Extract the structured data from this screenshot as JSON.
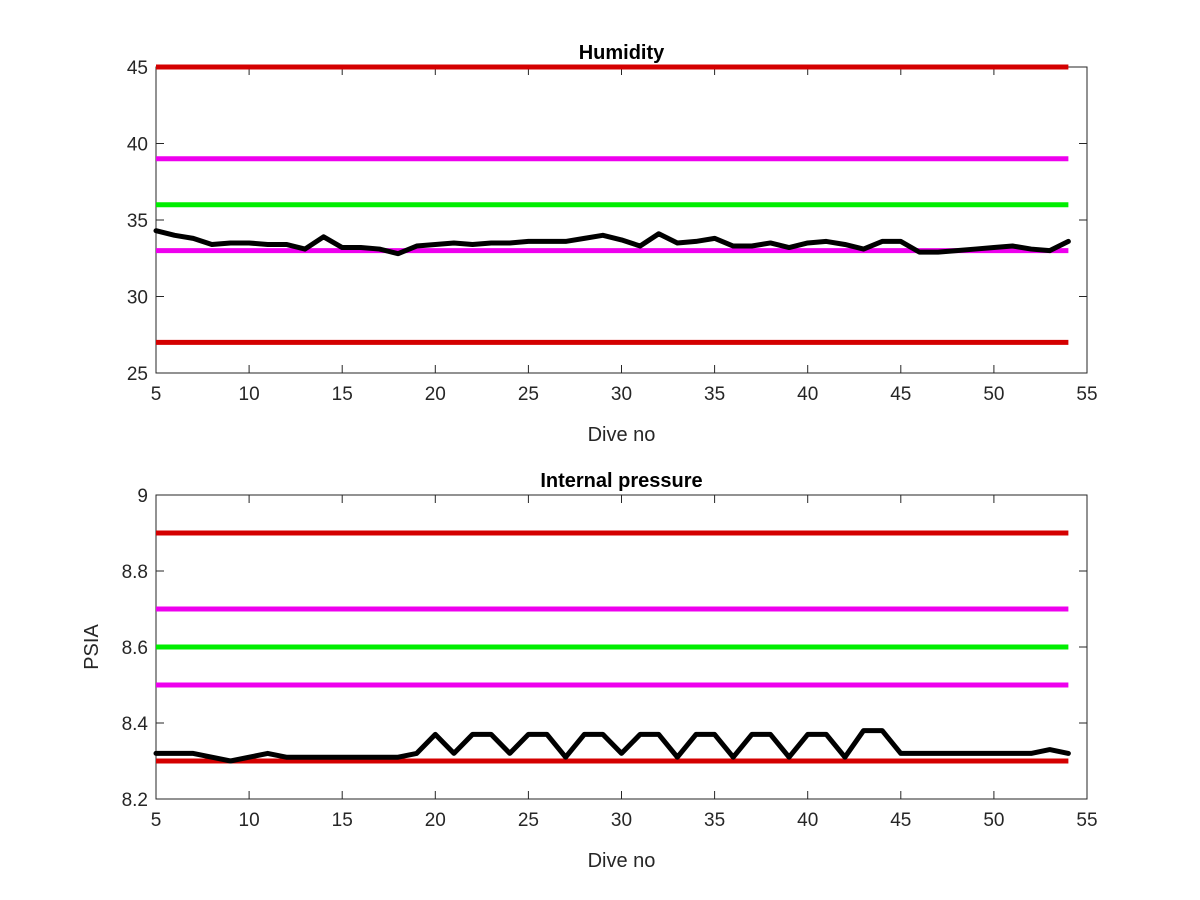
{
  "chart_data": [
    {
      "type": "line",
      "title": "Humidity",
      "xlabel": "Dive no",
      "ylabel": "",
      "xlim": [
        5,
        55
      ],
      "ylim": [
        25,
        45
      ],
      "x_ticks": [
        "5",
        "10",
        "15",
        "20",
        "25",
        "30",
        "35",
        "40",
        "45",
        "50",
        "55"
      ],
      "y_ticks": [
        "25",
        "30",
        "35",
        "40",
        "45"
      ],
      "grid": false,
      "thresholds": [
        {
          "value": 45,
          "color": "#d40000"
        },
        {
          "value": 39,
          "color": "#ee00ee"
        },
        {
          "value": 36,
          "color": "#00ee00"
        },
        {
          "value": 33,
          "color": "#ee00ee"
        },
        {
          "value": 27,
          "color": "#d40000"
        }
      ],
      "series": [
        {
          "color": "#000000",
          "x": [
            5,
            6,
            7,
            8,
            9,
            10,
            11,
            12,
            13,
            14,
            15,
            16,
            17,
            18,
            19,
            20,
            21,
            22,
            23,
            24,
            25,
            26,
            27,
            28,
            29,
            30,
            31,
            32,
            33,
            34,
            35,
            36,
            37,
            38,
            39,
            40,
            41,
            42,
            43,
            44,
            45,
            46,
            47,
            48,
            49,
            50,
            51,
            52,
            53,
            54
          ],
          "values": [
            34.3,
            34.0,
            33.8,
            33.4,
            33.5,
            33.5,
            33.4,
            33.4,
            33.1,
            33.9,
            33.2,
            33.2,
            33.1,
            32.8,
            33.3,
            33.4,
            33.5,
            33.4,
            33.5,
            33.5,
            33.6,
            33.6,
            33.6,
            33.8,
            34.0,
            33.7,
            33.3,
            34.1,
            33.5,
            33.6,
            33.8,
            33.3,
            33.3,
            33.5,
            33.2,
            33.5,
            33.6,
            33.4,
            33.1,
            33.6,
            33.6,
            32.9,
            32.9,
            33.0,
            33.1,
            33.2,
            33.3,
            33.1,
            33.0,
            33.6
          ]
        }
      ]
    },
    {
      "type": "line",
      "title": "Internal pressure",
      "xlabel": "Dive no",
      "ylabel": "PSIA",
      "xlim": [
        5,
        55
      ],
      "ylim": [
        8.2,
        9
      ],
      "x_ticks": [
        "5",
        "10",
        "15",
        "20",
        "25",
        "30",
        "35",
        "40",
        "45",
        "50",
        "55"
      ],
      "y_ticks": [
        "8.2",
        "8.4",
        "8.6",
        "8.8",
        "9"
      ],
      "grid": false,
      "thresholds": [
        {
          "value": 8.9,
          "color": "#d40000"
        },
        {
          "value": 8.7,
          "color": "#ee00ee"
        },
        {
          "value": 8.6,
          "color": "#00ee00"
        },
        {
          "value": 8.5,
          "color": "#ee00ee"
        },
        {
          "value": 8.3,
          "color": "#d40000"
        }
      ],
      "series": [
        {
          "color": "#000000",
          "x": [
            5,
            6,
            7,
            8,
            9,
            10,
            11,
            12,
            13,
            14,
            15,
            16,
            17,
            18,
            19,
            20,
            21,
            22,
            23,
            24,
            25,
            26,
            27,
            28,
            29,
            30,
            31,
            32,
            33,
            34,
            35,
            36,
            37,
            38,
            39,
            40,
            41,
            42,
            43,
            44,
            45,
            46,
            47,
            48,
            49,
            50,
            51,
            52,
            53,
            54
          ],
          "values": [
            8.32,
            8.32,
            8.32,
            8.31,
            8.3,
            8.31,
            8.32,
            8.31,
            8.31,
            8.31,
            8.31,
            8.31,
            8.31,
            8.31,
            8.32,
            8.37,
            8.32,
            8.37,
            8.37,
            8.32,
            8.37,
            8.37,
            8.31,
            8.37,
            8.37,
            8.32,
            8.37,
            8.37,
            8.31,
            8.37,
            8.37,
            8.31,
            8.37,
            8.37,
            8.31,
            8.37,
            8.37,
            8.31,
            8.38,
            8.38,
            8.32,
            8.32,
            8.32,
            8.32,
            8.32,
            8.32,
            8.32,
            8.32,
            8.33,
            8.32
          ]
        }
      ]
    }
  ]
}
